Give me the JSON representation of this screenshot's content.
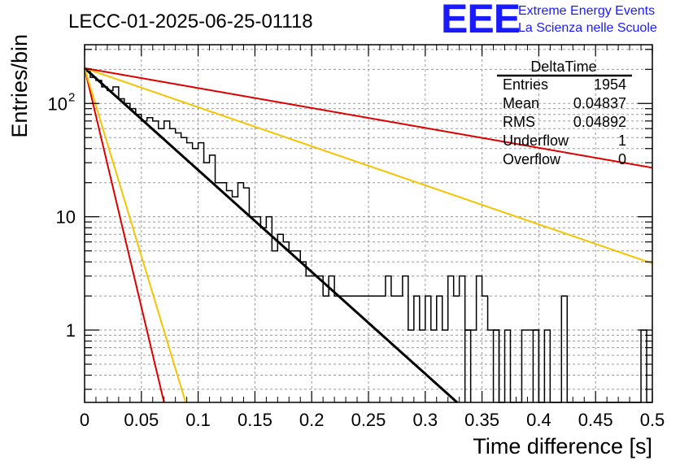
{
  "header": {
    "title": "LECC-01-2025-06-25-01118",
    "logo": "EEE",
    "logo_line1": "Extreme Energy Events",
    "logo_line2": "La Scienza nelle Scuole"
  },
  "stats_box": {
    "title": "DeltaTime",
    "rows": [
      {
        "label": "Entries",
        "value": "1954"
      },
      {
        "label": "Mean",
        "value": "0.04837"
      },
      {
        "label": "RMS",
        "value": "0.04892"
      },
      {
        "label": "Underflow",
        "value": "1"
      },
      {
        "label": "Overflow",
        "value": "0"
      }
    ]
  },
  "chart_data": {
    "type": "histogram",
    "xlabel": "Time difference [s]",
    "ylabel": "Entries/bin",
    "xlim": [
      0,
      0.5
    ],
    "ylim": [
      0.23,
      330
    ],
    "yscale": "log",
    "grid": true,
    "x_ticks": [
      "0",
      "0.05",
      "0.1",
      "0.15",
      "0.2",
      "0.25",
      "0.3",
      "0.35",
      "0.4",
      "0.45",
      "0.5"
    ],
    "y_ticks": [
      {
        "value": 1,
        "label": "1"
      },
      {
        "value": 10,
        "label": "10"
      },
      {
        "value": 100,
        "label": "10",
        "exp": "2"
      }
    ],
    "bin_width": 0.005,
    "histogram_color": "#000000",
    "bin_counts": [
      200,
      170,
      160,
      140,
      130,
      140,
      110,
      100,
      90,
      80,
      70,
      75,
      70,
      60,
      70,
      60,
      55,
      50,
      45,
      40,
      45,
      30,
      35,
      20,
      20,
      17,
      15,
      20,
      18,
      10,
      10,
      8,
      10,
      5,
      7,
      6,
      5,
      5,
      4,
      3,
      3,
      3,
      2,
      3,
      2,
      2,
      2,
      2,
      2,
      2,
      2,
      2,
      2,
      3,
      2,
      2,
      3,
      1,
      2,
      1,
      2,
      1,
      2,
      1,
      3,
      2,
      3,
      1,
      1,
      3,
      2,
      1,
      1,
      0,
      1,
      0,
      0,
      1,
      1,
      1,
      0,
      1,
      0,
      0,
      2,
      0,
      0,
      0,
      0,
      0,
      0,
      0,
      0,
      0,
      0,
      0,
      0,
      0,
      1,
      0,
      0,
      0,
      0,
      0,
      0,
      0,
      0,
      0,
      0,
      0,
      0,
      0,
      0,
      0,
      0,
      0,
      0,
      0,
      0,
      0,
      0,
      0,
      0,
      0,
      0,
      0,
      0,
      0,
      0,
      0,
      0,
      0,
      0,
      0,
      0,
      0,
      0,
      0,
      0,
      0,
      0,
      0,
      0,
      0,
      0,
      0,
      0,
      0,
      0,
      0,
      0,
      0,
      0,
      0,
      0
    ],
    "single_counts": [
      {
        "x0": 0.335,
        "x1": 0.34,
        "value": 1
      },
      {
        "x0": 0.36,
        "x1": 0.365,
        "value": 1
      },
      {
        "x0": 0.395,
        "x1": 0.4,
        "value": 1
      }
    ],
    "series": [
      {
        "color": "#000000",
        "type": "exponential",
        "a": 205,
        "tau": 0.0483,
        "xmax": 0.5,
        "width": 3
      },
      {
        "color": "#dd0000",
        "type": "exponential",
        "a": 205,
        "tau": 0.0103,
        "xmax": 0.5,
        "width": 2
      },
      {
        "color": "#f5c400",
        "type": "exponential",
        "a": 205,
        "tau": 0.0131,
        "xmax": 0.5,
        "width": 2
      },
      {
        "color": "#f5c400",
        "type": "exponential",
        "a": 205,
        "tau": 0.126,
        "xmax": 0.5,
        "width": 2
      },
      {
        "color": "#dd0000",
        "type": "exponential",
        "a": 205,
        "tau": 0.247,
        "xmax": 0.5,
        "width": 2
      }
    ]
  }
}
